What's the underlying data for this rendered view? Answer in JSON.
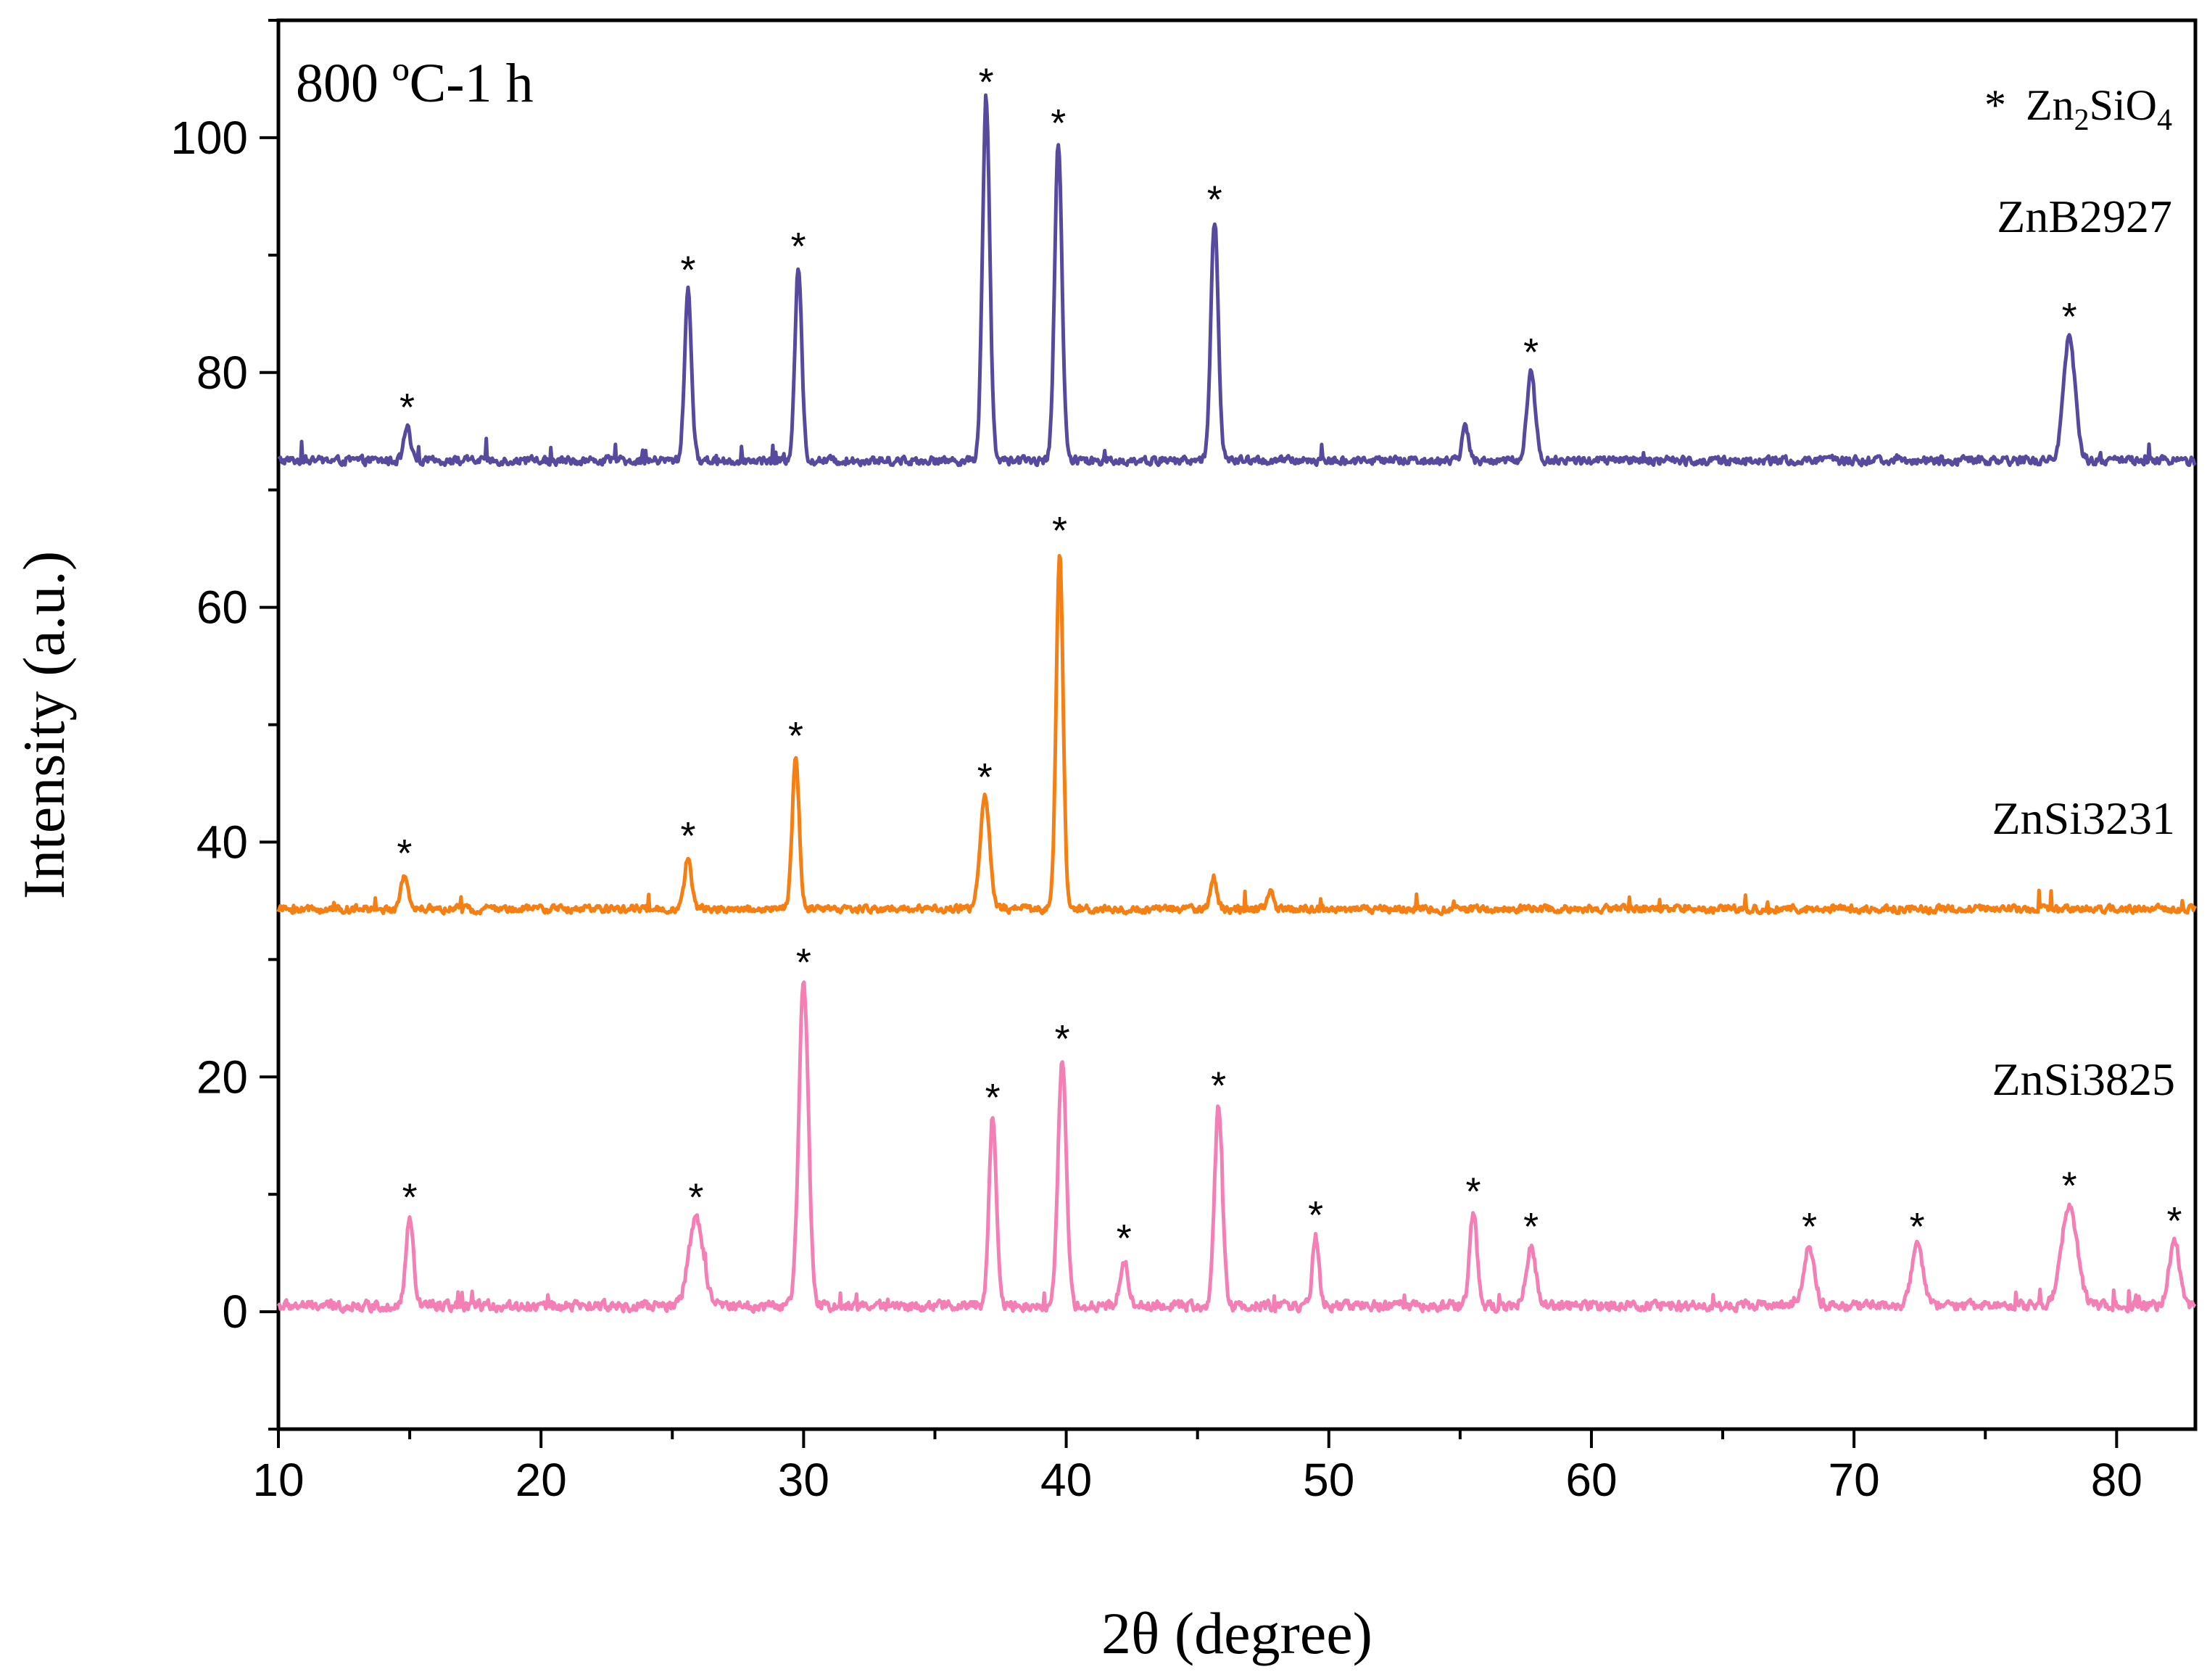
{
  "chart_data": {
    "type": "line",
    "title": "",
    "xlabel": "2θ (degree)",
    "ylabel": "Intensity (a.u.)",
    "xlim": [
      10,
      83
    ],
    "ylim": [
      -10,
      110
    ],
    "xticks": [
      10,
      20,
      30,
      40,
      50,
      60,
      70,
      80
    ],
    "yticks": [
      0,
      20,
      40,
      60,
      80,
      100
    ],
    "grid": false,
    "annotation": "800 ºC-1 h",
    "legend": {
      "marker": "*",
      "text": "Zn",
      "sub1": "2",
      "mid": "SiO",
      "sub2": "4",
      "placement": "top-right"
    },
    "peak_marker": "*",
    "series": [
      {
        "name": "ZnB2927",
        "color": "#574a9e",
        "baseline": 72.5,
        "noise": 0.5,
        "peaks": [
          {
            "x": 14.9,
            "h": 2.8,
            "w": 0.12,
            "star": true
          },
          {
            "x": 25.6,
            "h": 14.5,
            "w": 0.13,
            "star": true
          },
          {
            "x": 29.8,
            "h": 16.5,
            "w": 0.13,
            "star": true
          },
          {
            "x": 36.95,
            "h": 30.5,
            "w": 0.14,
            "star": true
          },
          {
            "x": 39.7,
            "h": 27.0,
            "w": 0.14,
            "star": true
          },
          {
            "x": 45.65,
            "h": 20.5,
            "w": 0.14,
            "star": true
          },
          {
            "x": 55.2,
            "h": 3.0,
            "w": 0.12,
            "star": false
          },
          {
            "x": 57.7,
            "h": 7.5,
            "w": 0.16,
            "star": true
          },
          {
            "x": 78.2,
            "h": 10.5,
            "w": 0.22,
            "star": true
          }
        ]
      },
      {
        "name": "ZnSi3231",
        "color": "#f57f12",
        "baseline": 34.3,
        "noise": 0.45,
        "peaks": [
          {
            "x": 14.8,
            "h": 3.0,
            "w": 0.12,
            "star": true
          },
          {
            "x": 25.6,
            "h": 4.5,
            "w": 0.13,
            "star": true
          },
          {
            "x": 29.7,
            "h": 13.0,
            "w": 0.13,
            "star": true
          },
          {
            "x": 36.9,
            "h": 9.5,
            "w": 0.18,
            "star": true
          },
          {
            "x": 39.75,
            "h": 30.5,
            "w": 0.13,
            "star": true
          },
          {
            "x": 45.6,
            "h": 2.8,
            "w": 0.12,
            "star": false
          },
          {
            "x": 47.8,
            "h": 1.8,
            "w": 0.1,
            "star": false
          }
        ]
      },
      {
        "name": "ZnSi3825",
        "color": "#f47fb4",
        "baseline": 0.5,
        "noise": 0.6,
        "peaks": [
          {
            "x": 15.0,
            "h": 7.5,
            "w": 0.14,
            "star": true
          },
          {
            "x": 25.9,
            "h": 7.5,
            "w": 0.28,
            "star": true
          },
          {
            "x": 30.0,
            "h": 27.5,
            "w": 0.18,
            "star": true
          },
          {
            "x": 37.2,
            "h": 16.0,
            "w": 0.14,
            "star": true
          },
          {
            "x": 39.85,
            "h": 21.0,
            "w": 0.16,
            "star": true
          },
          {
            "x": 42.2,
            "h": 4.0,
            "w": 0.15,
            "star": true
          },
          {
            "x": 45.8,
            "h": 17.0,
            "w": 0.15,
            "star": true
          },
          {
            "x": 49.5,
            "h": 6.0,
            "w": 0.12,
            "star": true
          },
          {
            "x": 55.5,
            "h": 8.0,
            "w": 0.14,
            "star": true
          },
          {
            "x": 57.7,
            "h": 5.0,
            "w": 0.18,
            "star": true
          },
          {
            "x": 68.3,
            "h": 5.0,
            "w": 0.2,
            "star": true
          },
          {
            "x": 72.4,
            "h": 5.0,
            "w": 0.22,
            "star": true
          },
          {
            "x": 78.2,
            "h": 8.5,
            "w": 0.3,
            "star": true
          },
          {
            "x": 82.2,
            "h": 5.5,
            "w": 0.2,
            "star": true
          }
        ]
      }
    ]
  }
}
